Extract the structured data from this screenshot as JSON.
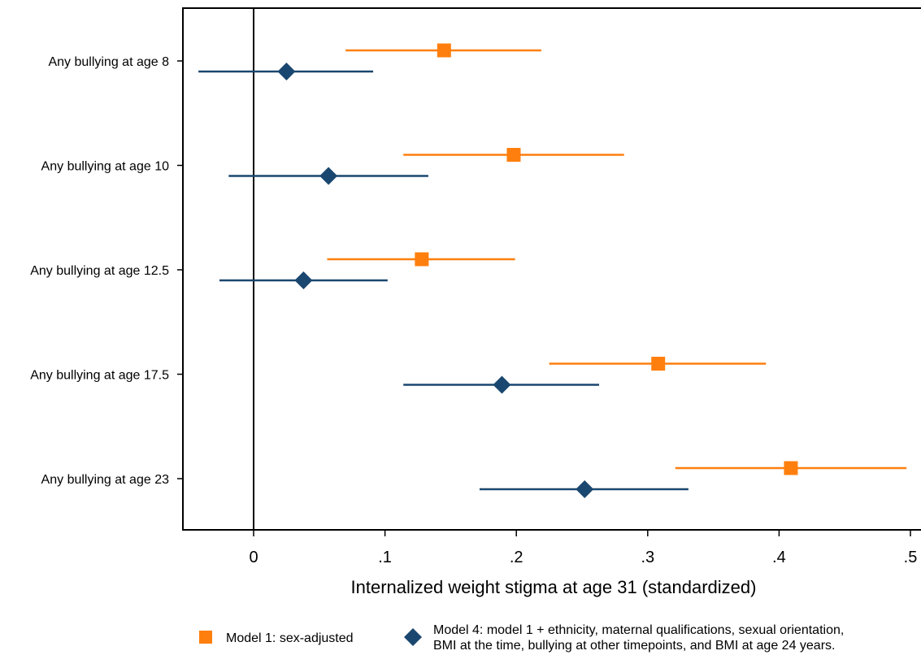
{
  "chart_data": {
    "type": "scatter",
    "subtype": "forest-plot",
    "title": "",
    "xlabel": "Internalized weight stigma at age 31 (standardized)",
    "ylabel": "",
    "xlim": [
      -0.052,
      0.505
    ],
    "xticks": [
      0,
      0.1,
      0.2,
      0.3,
      0.4,
      0.5
    ],
    "xtick_labels": [
      "0",
      ".1",
      ".2",
      ".3",
      ".4",
      ".5"
    ],
    "reference_line_x": 0,
    "grid": false,
    "legend_position": "bottom",
    "categories": [
      "Any bullying at age 8",
      "Any bullying at age 10",
      "Any bullying at age 12.5",
      "Any bullying at age 17.5",
      "Any bullying at age 23"
    ],
    "series": [
      {
        "name": "Model 1: sex-adjusted",
        "marker": "square",
        "color": "#ff7f0e",
        "estimate": [
          0.145,
          0.198,
          0.128,
          0.308,
          0.409
        ],
        "ci_low": [
          0.07,
          0.114,
          0.056,
          0.225,
          0.321
        ],
        "ci_high": [
          0.219,
          0.282,
          0.199,
          0.39,
          0.497
        ]
      },
      {
        "name": "Model 4: model 1 + ethnicity, maternal qualifications, sexual orientation, BMI at the time, bullying at other timepoints, and BMI at age 24 years.",
        "legend_lines": [
          "Model 4: model 1 + ethnicity, maternal qualifications, sexual orientation,",
          "BMI at the time, bullying at other timepoints, and BMI at age 24 years."
        ],
        "marker": "diamond",
        "color": "#1a476f",
        "estimate": [
          0.025,
          0.057,
          0.038,
          0.189,
          0.252
        ],
        "ci_low": [
          -0.042,
          -0.019,
          -0.026,
          0.114,
          0.172
        ],
        "ci_high": [
          0.091,
          0.133,
          0.102,
          0.263,
          0.331
        ]
      }
    ]
  }
}
